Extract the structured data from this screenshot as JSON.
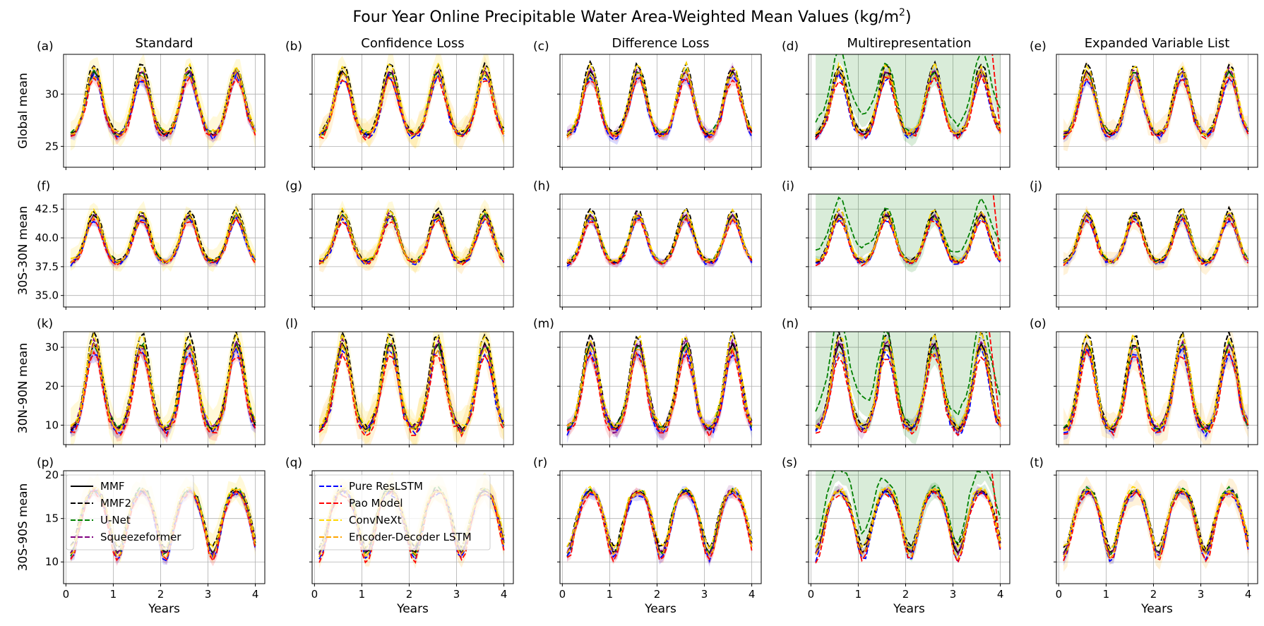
{
  "figure": {
    "title_main": "Four Year Online Precipitable Water Area-Weighted Mean Values (kg/m",
    "title_sup": "2",
    "title_end": ")",
    "xlabel": "Years",
    "column_titles": [
      "Standard",
      "Confidence Loss",
      "Difference Loss",
      "Multirepresentation",
      "Expanded Variable List"
    ],
    "row_labels": [
      "Global mean",
      "30S-30N mean",
      "30N-90N mean",
      "30S-90S mean"
    ],
    "panel_labels": [
      "(a)",
      "(b)",
      "(c)",
      "(d)",
      "(e)",
      "(f)",
      "(g)",
      "(h)",
      "(i)",
      "(j)",
      "(k)",
      "(l)",
      "(m)",
      "(n)",
      "(o)",
      "(p)",
      "(q)",
      "(r)",
      "(s)",
      "(t)"
    ],
    "x_ticks": [
      "0",
      "1",
      "2",
      "3",
      "4"
    ],
    "row_ticks": [
      [
        "25",
        "30"
      ],
      [
        "35.0",
        "37.5",
        "40.0",
        "42.5"
      ],
      [
        "10",
        "20",
        "30"
      ],
      [
        "10",
        "15",
        "20"
      ]
    ]
  },
  "chart_data": {
    "type": "line",
    "title": "Four Year Online Precipitable Water Area-Weighted Mean Values (kg/m2)",
    "xlabel": "Years",
    "xlim": [
      -0.05,
      4.2
    ],
    "rows": [
      {
        "name": "Global mean",
        "ylim": [
          23.0,
          33.8
        ],
        "ticks": [
          25,
          30
        ],
        "base": [
          26.0,
          32.2
        ],
        "phase": 0.6
      },
      {
        "name": "30S-30N mean",
        "ylim": [
          34.0,
          43.8
        ],
        "ticks": [
          35.0,
          37.5,
          40.0,
          42.5
        ],
        "base": [
          37.8,
          42.0
        ],
        "phase": 0.6
      },
      {
        "name": "30N-90N mean",
        "ylim": [
          5.0,
          34.0
        ],
        "ticks": [
          10,
          20,
          30
        ],
        "base": [
          8.5,
          31.0
        ],
        "phase": 0.6
      },
      {
        "name": "30S-90S mean",
        "ylim": [
          7.5,
          20.5
        ],
        "ticks": [
          10,
          15,
          20
        ],
        "base": [
          18.3,
          11.0
        ],
        "phase": 0.1
      }
    ],
    "columns": [
      "Standard",
      "Confidence Loss",
      "Difference Loss",
      "Multirepresentation",
      "Expanded Variable List"
    ],
    "series": [
      {
        "name": "MMF",
        "color": "#000000",
        "dash": "solid"
      },
      {
        "name": "MMF2",
        "color": "#000000",
        "dash": "dashed"
      },
      {
        "name": "U-Net",
        "color": "#008000",
        "dash": "dashed"
      },
      {
        "name": "Squeezeformer",
        "color": "#800080",
        "dash": "dashed"
      },
      {
        "name": "Pure ResLSTM",
        "color": "#0000ff",
        "dash": "dashed"
      },
      {
        "name": "Pao Model",
        "color": "#ff0000",
        "dash": "dashed"
      },
      {
        "name": "ConvNeXt",
        "color": "#ffd700",
        "dash": "dashed"
      },
      {
        "name": "Encoder-Decoder LSTM",
        "color": "#ffa500",
        "dash": "dashed"
      }
    ],
    "legend": [
      {
        "placement": "panel (p) top-left",
        "entries": [
          "MMF",
          "MMF2",
          "U-Net",
          "Squeezeformer"
        ]
      },
      {
        "placement": "panel (q) top-left",
        "entries": [
          "Pure ResLSTM",
          "Pao Model",
          "ConvNeXt",
          "Encoder-Decoder LSTM"
        ]
      }
    ],
    "annotations": [
      "Multirepresentation: U-Net and Pao Model diverge upward near year 3.7"
    ],
    "grid": true
  }
}
